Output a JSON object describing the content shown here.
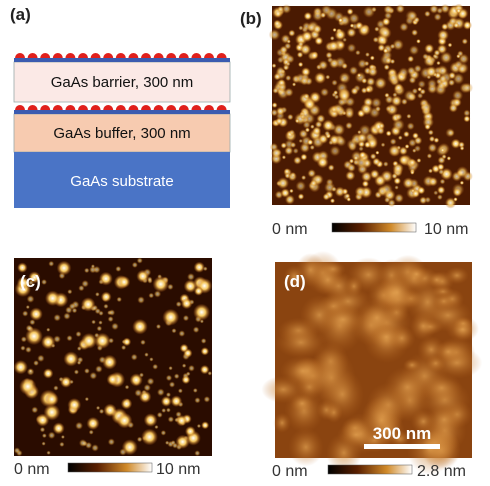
{
  "panels": [
    {
      "label": "(a)",
      "layers": [
        "GaAs barrier, 300 nm",
        "GaAs buffer, 300 nm",
        "GaAs substrate"
      ]
    },
    {
      "label": "(b)",
      "scale": {
        "min": "0 nm",
        "max": "10 nm"
      }
    },
    {
      "label": "(c)",
      "scale": {
        "min": "0 nm",
        "max": "10 nm"
      }
    },
    {
      "label": "(d)",
      "scale_bar": "300 nm",
      "scale": {
        "min": "0 nm",
        "max": "2.8 nm"
      }
    }
  ]
}
